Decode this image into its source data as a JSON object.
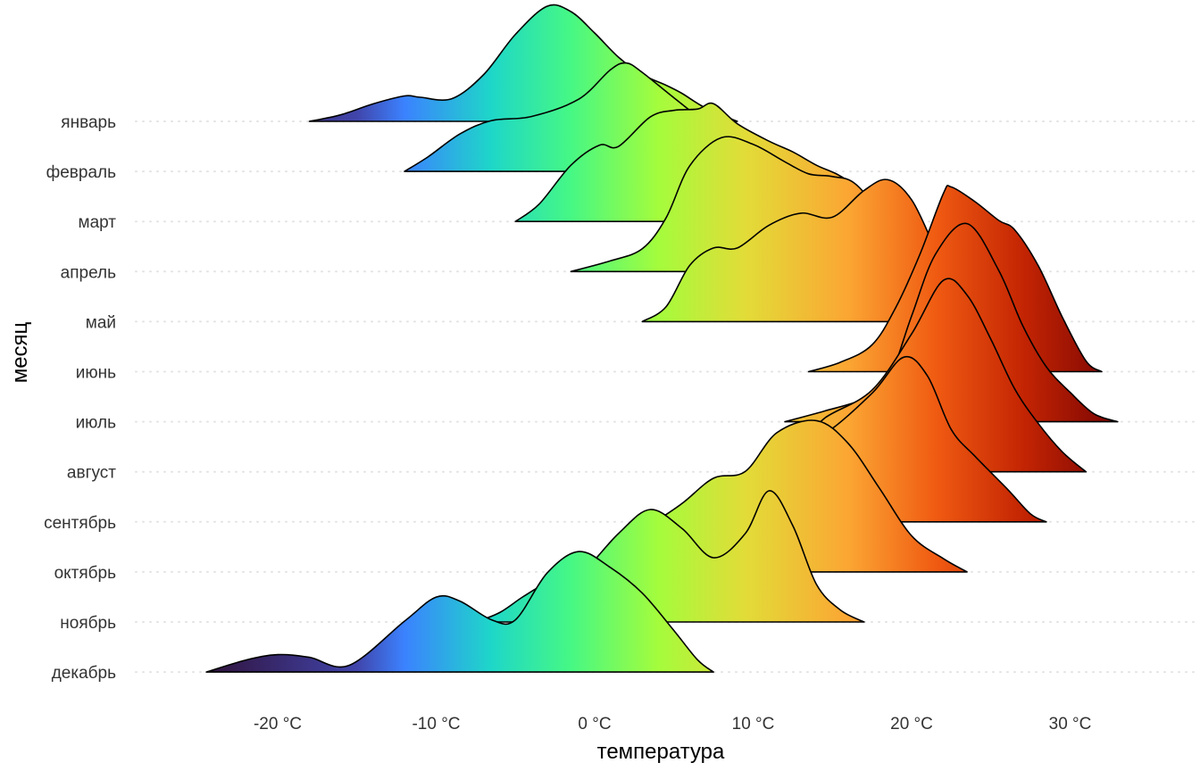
{
  "chart_data": {
    "type": "ridgeline",
    "xlabel": "температура",
    "ylabel": "месяц",
    "xlim": [
      -28,
      37
    ],
    "x_ticks": [
      {
        "value": -20,
        "label": "-20 °C"
      },
      {
        "value": -10,
        "label": "-10 °C"
      },
      {
        "value": 0,
        "label": "0 °C"
      },
      {
        "value": 10,
        "label": "10 °C"
      },
      {
        "value": 20,
        "label": "20 °C"
      },
      {
        "value": 30,
        "label": "30 °C"
      }
    ],
    "grid": "dotted horizontal",
    "fill_scale": {
      "variable": "temperature",
      "palette": "turbo",
      "range": [
        -24,
        33
      ],
      "stops": [
        {
          "t": -24.5,
          "color": "#30123b"
        },
        {
          "t": -15.0,
          "color": "#4145ab"
        },
        {
          "t": -12.0,
          "color": "#3b82ff"
        },
        {
          "t": -6.5,
          "color": "#1ed7c8"
        },
        {
          "t": -1.5,
          "color": "#46f884"
        },
        {
          "t": 4.0,
          "color": "#a4fc3c"
        },
        {
          "t": 9.5,
          "color": "#e2dc38"
        },
        {
          "t": 16.0,
          "color": "#fba633"
        },
        {
          "t": 21.5,
          "color": "#f05b12"
        },
        {
          "t": 27.0,
          "color": "#c42503"
        },
        {
          "t": 33.0,
          "color": "#7a0403"
        }
      ]
    },
    "series": [
      {
        "name": "январь",
        "min": -18.0,
        "max": 9.0,
        "points": [
          [
            -18.0,
            0
          ],
          [
            -16.0,
            0.05
          ],
          [
            -14.0,
            0.13
          ],
          [
            -12.0,
            0.19
          ],
          [
            -11.0,
            0.18
          ],
          [
            -9.0,
            0.17
          ],
          [
            -7.0,
            0.35
          ],
          [
            -5.0,
            0.65
          ],
          [
            -3.0,
            0.86
          ],
          [
            -1.5,
            0.82
          ],
          [
            0.0,
            0.66
          ],
          [
            1.5,
            0.48
          ],
          [
            3.0,
            0.35
          ],
          [
            4.5,
            0.27
          ],
          [
            5.5,
            0.21
          ],
          [
            7.0,
            0.1
          ],
          [
            9.0,
            0
          ]
        ]
      },
      {
        "name": "февраль",
        "min": -12.0,
        "max": 14.5,
        "points": [
          [
            -12.0,
            0
          ],
          [
            -10.5,
            0.11
          ],
          [
            -8.5,
            0.28
          ],
          [
            -6.5,
            0.38
          ],
          [
            -4.0,
            0.41
          ],
          [
            -1.0,
            0.54
          ],
          [
            1.0,
            0.76
          ],
          [
            2.0,
            0.81
          ],
          [
            3.0,
            0.74
          ],
          [
            5.0,
            0.55
          ],
          [
            7.0,
            0.37
          ],
          [
            9.0,
            0.25
          ],
          [
            11.0,
            0.17
          ],
          [
            13.0,
            0.1
          ],
          [
            14.5,
            0
          ]
        ]
      },
      {
        "name": "март",
        "min": -5.0,
        "max": 18.5,
        "points": [
          [
            -5.0,
            0
          ],
          [
            -3.5,
            0.13
          ],
          [
            -1.5,
            0.42
          ],
          [
            0.3,
            0.57
          ],
          [
            1.5,
            0.56
          ],
          [
            3.5,
            0.78
          ],
          [
            5.0,
            0.83
          ],
          [
            6.5,
            0.84
          ],
          [
            7.5,
            0.88
          ],
          [
            9.0,
            0.73
          ],
          [
            11.0,
            0.6
          ],
          [
            12.5,
            0.52
          ],
          [
            14.0,
            0.42
          ],
          [
            16.0,
            0.3
          ],
          [
            18.5,
            0
          ]
        ]
      },
      {
        "name": "апрель",
        "min": -1.5,
        "max": 20.0,
        "points": [
          [
            -1.5,
            0
          ],
          [
            1.0,
            0.08
          ],
          [
            3.0,
            0.17
          ],
          [
            4.5,
            0.4
          ],
          [
            6.0,
            0.79
          ],
          [
            8.0,
            1.0
          ],
          [
            10.0,
            0.95
          ],
          [
            12.0,
            0.82
          ],
          [
            13.5,
            0.73
          ],
          [
            15.0,
            0.71
          ],
          [
            16.5,
            0.65
          ],
          [
            18.5,
            0.35
          ],
          [
            20.0,
            0
          ]
        ]
      },
      {
        "name": "май",
        "min": 3.0,
        "max": 26.0,
        "points": [
          [
            3.0,
            0
          ],
          [
            4.5,
            0.11
          ],
          [
            6.0,
            0.42
          ],
          [
            7.5,
            0.55
          ],
          [
            9.0,
            0.55
          ],
          [
            11.0,
            0.72
          ],
          [
            13.0,
            0.81
          ],
          [
            15.0,
            0.78
          ],
          [
            17.0,
            0.98
          ],
          [
            18.5,
            1.06
          ],
          [
            20.0,
            0.91
          ],
          [
            21.5,
            0.55
          ],
          [
            23.0,
            0.25
          ],
          [
            24.5,
            0.1
          ],
          [
            26.0,
            0
          ]
        ]
      },
      {
        "name": "июнь",
        "min": 13.5,
        "max": 32.0,
        "points": [
          [
            13.5,
            0
          ],
          [
            15.5,
            0.07
          ],
          [
            17.5,
            0.2
          ],
          [
            19.0,
            0.48
          ],
          [
            20.5,
            0.87
          ],
          [
            22.0,
            1.33
          ],
          [
            22.5,
            1.38
          ],
          [
            24.0,
            1.27
          ],
          [
            25.5,
            1.13
          ],
          [
            26.5,
            1.06
          ],
          [
            28.0,
            0.79
          ],
          [
            29.5,
            0.41
          ],
          [
            31.0,
            0.08
          ],
          [
            32.0,
            0
          ]
        ]
      },
      {
        "name": "июль",
        "min": 12.0,
        "max": 33.0,
        "points": [
          [
            12.0,
            0
          ],
          [
            14.5,
            0.08
          ],
          [
            17.0,
            0.17
          ],
          [
            18.5,
            0.3
          ],
          [
            20.0,
            0.79
          ],
          [
            21.5,
            1.25
          ],
          [
            23.5,
            1.48
          ],
          [
            25.5,
            1.13
          ],
          [
            27.0,
            0.72
          ],
          [
            28.5,
            0.41
          ],
          [
            30.0,
            0.22
          ],
          [
            31.5,
            0.06
          ],
          [
            33.0,
            0
          ]
        ]
      },
      {
        "name": "август",
        "min": 11.0,
        "max": 31.0,
        "points": [
          [
            11.0,
            0
          ],
          [
            12.0,
            0.07
          ],
          [
            13.0,
            0.2
          ],
          [
            14.5,
            0.4
          ],
          [
            17.5,
            0.61
          ],
          [
            20.0,
            1.03
          ],
          [
            22.0,
            1.43
          ],
          [
            23.5,
            1.32
          ],
          [
            25.0,
            0.99
          ],
          [
            26.5,
            0.62
          ],
          [
            28.0,
            0.36
          ],
          [
            29.5,
            0.15
          ],
          [
            31.0,
            0
          ]
        ]
      },
      {
        "name": "сентябрь",
        "min": 10.0,
        "max": 28.5,
        "points": [
          [
            10.0,
            0
          ],
          [
            11.0,
            0.19
          ],
          [
            12.0,
            0.59
          ],
          [
            13.0,
            0.69
          ],
          [
            14.5,
            0.66
          ],
          [
            17.5,
            0.96
          ],
          [
            19.5,
            1.23
          ],
          [
            21.0,
            1.09
          ],
          [
            22.5,
            0.69
          ],
          [
            24.0,
            0.49
          ],
          [
            26.0,
            0.25
          ],
          [
            27.5,
            0.06
          ],
          [
            28.5,
            0
          ]
        ]
      },
      {
        "name": "октябрь",
        "min": 0.0,
        "max": 23.5,
        "points": [
          [
            0.0,
            0
          ],
          [
            1.5,
            0.19
          ],
          [
            3.5,
            0.35
          ],
          [
            5.5,
            0.51
          ],
          [
            7.5,
            0.7
          ],
          [
            9.5,
            0.75
          ],
          [
            11.5,
            1.04
          ],
          [
            14.0,
            1.13
          ],
          [
            16.0,
            0.96
          ],
          [
            18.0,
            0.62
          ],
          [
            20.0,
            0.27
          ],
          [
            22.0,
            0.1
          ],
          [
            23.5,
            0
          ]
        ]
      },
      {
        "name": "ноябрь",
        "min": -7.5,
        "max": 17.0,
        "points": [
          [
            -7.5,
            0
          ],
          [
            -6.0,
            0.07
          ],
          [
            -4.5,
            0.19
          ],
          [
            -3.0,
            0.29
          ],
          [
            -1.0,
            0.35
          ],
          [
            1.5,
            0.66
          ],
          [
            3.5,
            0.84
          ],
          [
            5.5,
            0.7
          ],
          [
            7.5,
            0.48
          ],
          [
            9.5,
            0.66
          ],
          [
            11.0,
            0.98
          ],
          [
            12.5,
            0.72
          ],
          [
            14.0,
            0.28
          ],
          [
            15.5,
            0.09
          ],
          [
            17.0,
            0
          ]
        ]
      },
      {
        "name": "декабрь",
        "min": -24.5,
        "max": 7.5,
        "points": [
          [
            -24.5,
            0
          ],
          [
            -22.0,
            0.09
          ],
          [
            -20.0,
            0.13
          ],
          [
            -18.0,
            0.11
          ],
          [
            -15.5,
            0.05
          ],
          [
            -12.0,
            0.38
          ],
          [
            -10.0,
            0.56
          ],
          [
            -8.5,
            0.53
          ],
          [
            -6.5,
            0.39
          ],
          [
            -5.0,
            0.39
          ],
          [
            -3.0,
            0.74
          ],
          [
            -1.0,
            0.9
          ],
          [
            1.0,
            0.78
          ],
          [
            3.0,
            0.59
          ],
          [
            5.0,
            0.31
          ],
          [
            6.5,
            0.09
          ],
          [
            7.5,
            0
          ]
        ]
      }
    ]
  }
}
